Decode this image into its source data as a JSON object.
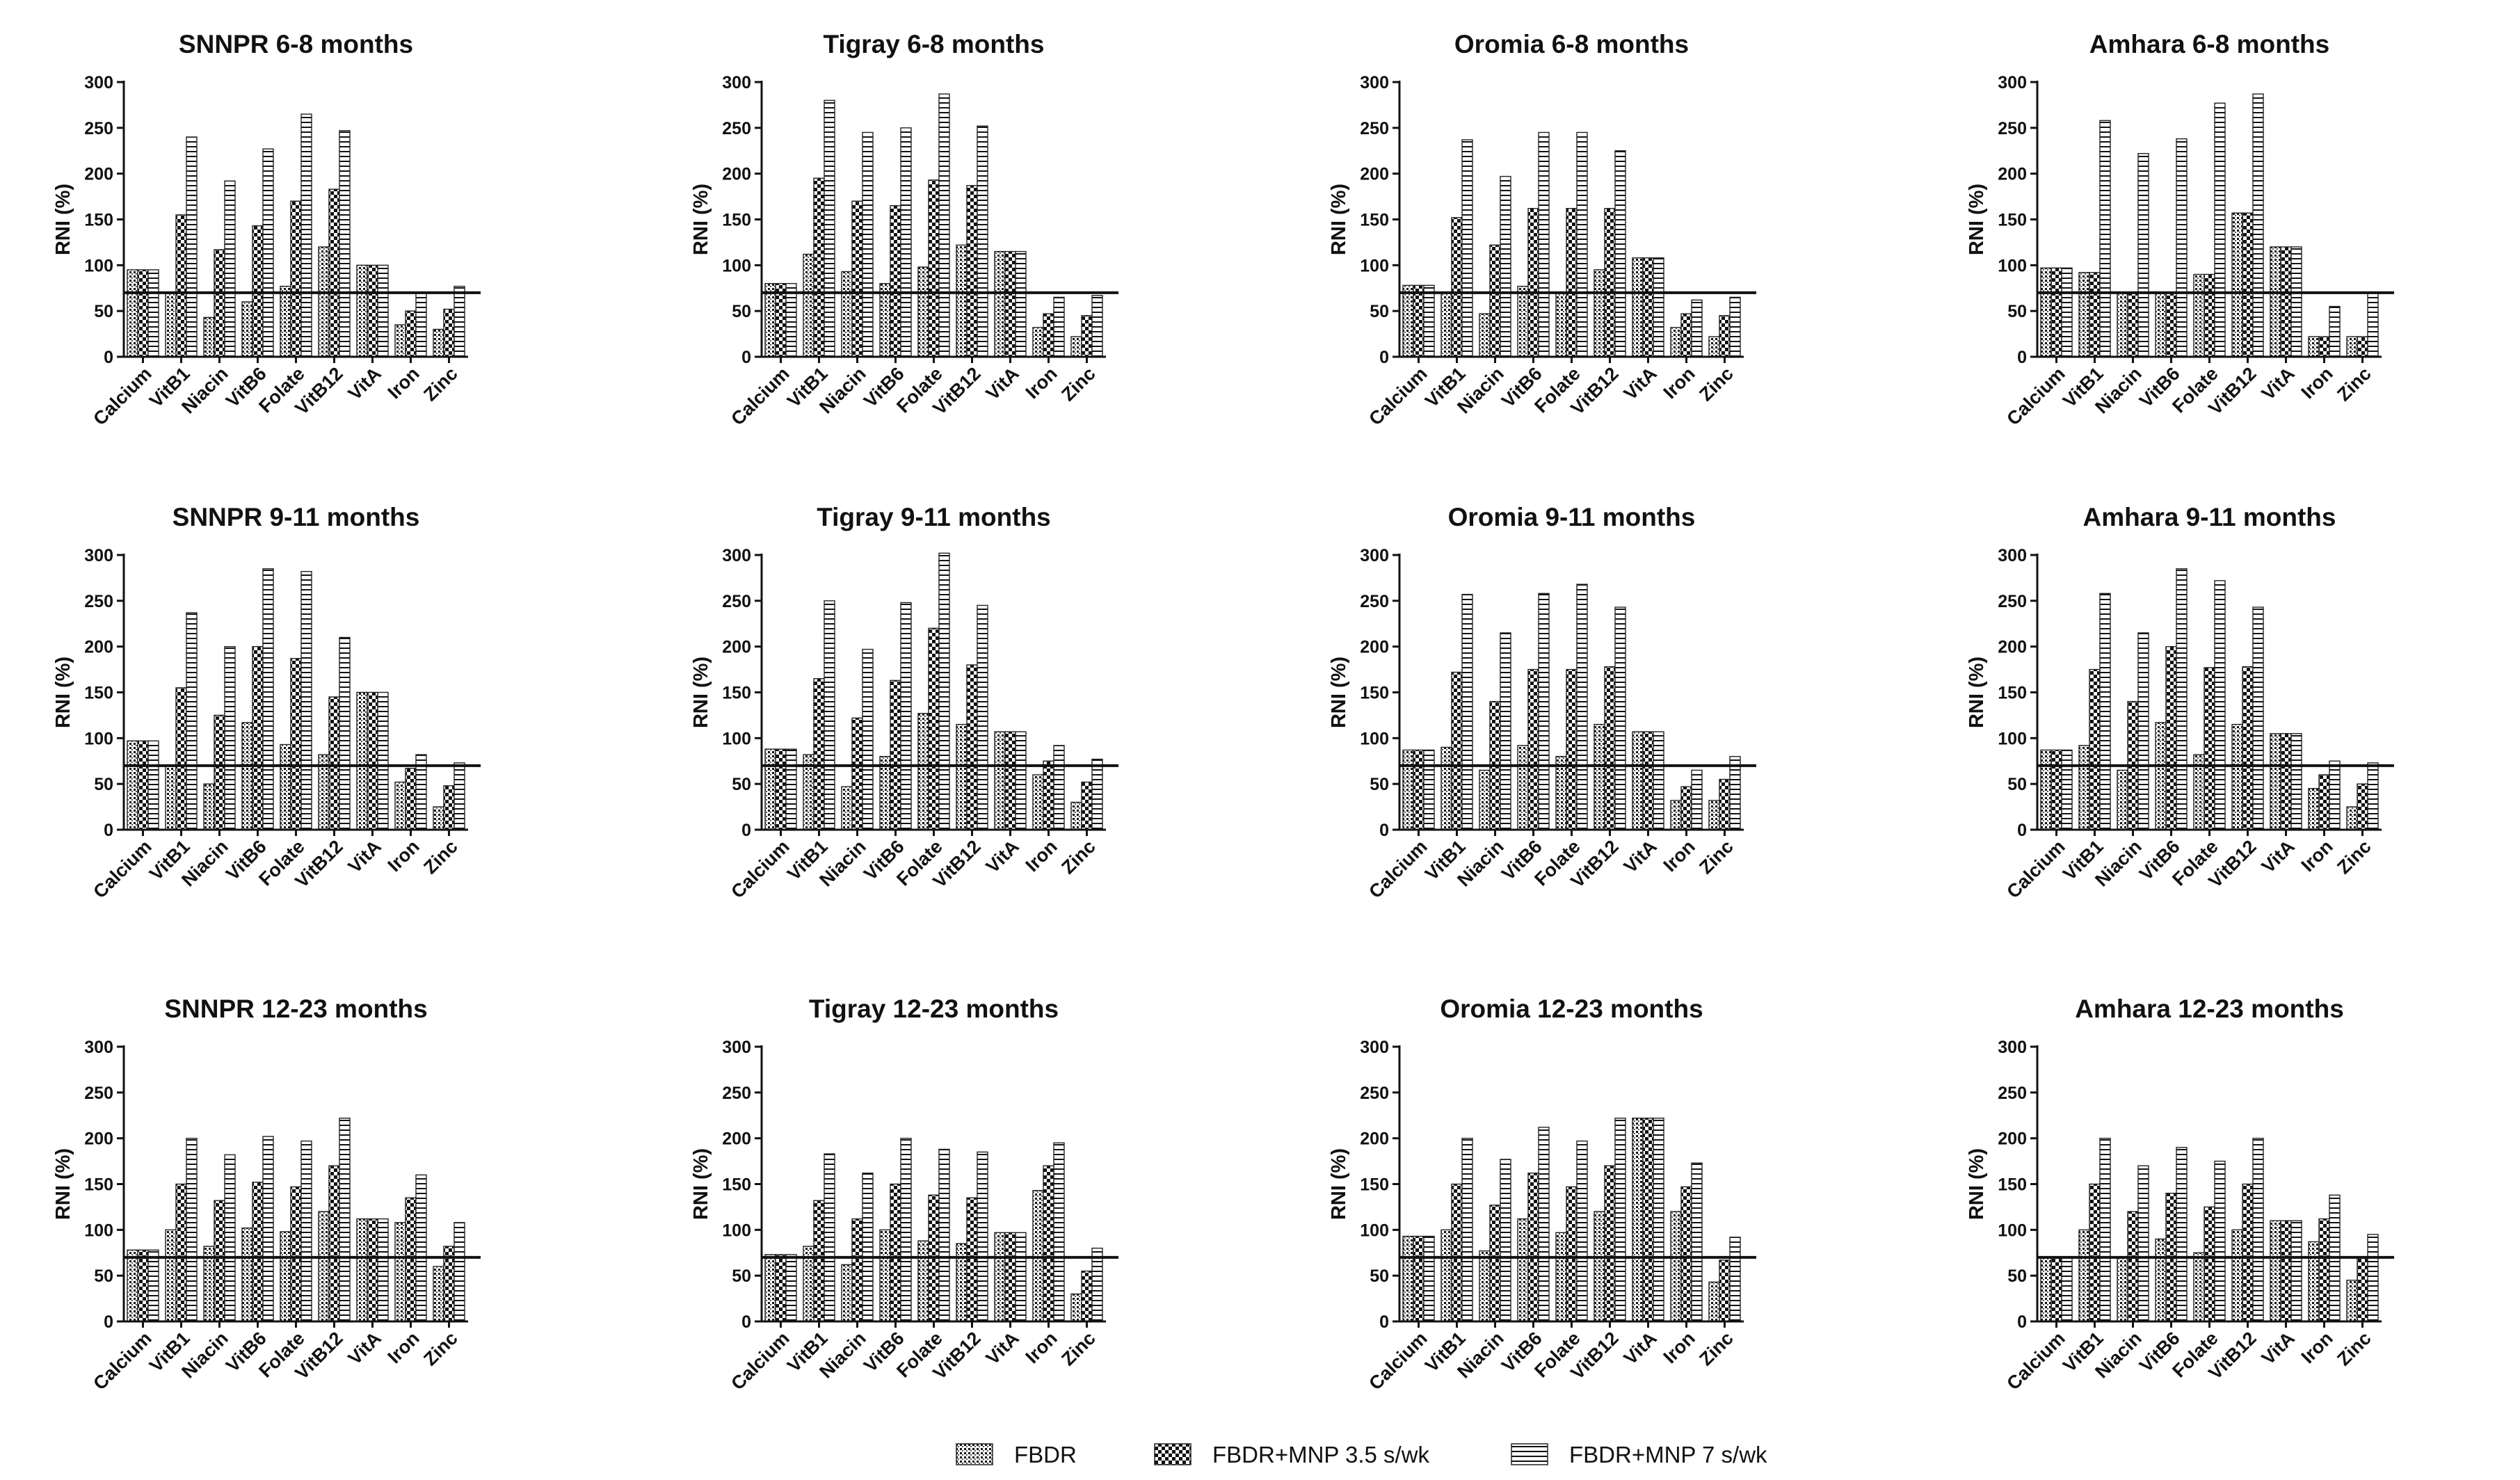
{
  "chart_data": {
    "type": "bar",
    "ylabel": "RNI (%)",
    "ylim": [
      0,
      300
    ],
    "yticks": [
      0,
      50,
      100,
      150,
      200,
      250,
      300
    ],
    "reference_line": 70,
    "categories": [
      "Calcium",
      "VitB1",
      "Niacin",
      "VitB6",
      "Folate",
      "VitB12",
      "VitA",
      "Iron",
      "Zinc"
    ],
    "series_names": [
      "FBDR",
      "FBDR+MNP 3.5 s/wk",
      "FBDR+MNP 7 s/wk"
    ],
    "panels": [
      {
        "title": "SNNPR 6-8 months",
        "series": [
          [
            95,
            70,
            43,
            60,
            77,
            120,
            100,
            35,
            30
          ],
          [
            95,
            155,
            117,
            143,
            170,
            183,
            100,
            50,
            52
          ],
          [
            95,
            240,
            192,
            227,
            265,
            247,
            100,
            70,
            77
          ]
        ]
      },
      {
        "title": "Tigray 6-8 months",
        "series": [
          [
            80,
            112,
            93,
            80,
            98,
            122,
            115,
            32,
            22
          ],
          [
            80,
            195,
            170,
            165,
            193,
            187,
            115,
            47,
            45
          ],
          [
            80,
            280,
            245,
            250,
            287,
            252,
            115,
            65,
            67
          ]
        ]
      },
      {
        "title": "Oromia 6-8 months",
        "series": [
          [
            78,
            70,
            47,
            77,
            70,
            95,
            108,
            32,
            22
          ],
          [
            78,
            152,
            122,
            162,
            162,
            162,
            108,
            47,
            45
          ],
          [
            78,
            237,
            197,
            245,
            245,
            225,
            108,
            62,
            65
          ]
        ]
      },
      {
        "title": "Amhara 6-8 months",
        "series": [
          [
            97,
            92,
            70,
            70,
            90,
            157,
            120,
            22,
            22
          ],
          [
            97,
            92,
            70,
            70,
            90,
            157,
            120,
            22,
            22
          ],
          [
            97,
            258,
            222,
            238,
            277,
            287,
            120,
            55,
            70
          ]
        ]
      },
      {
        "title": "SNNPR 9-11 months",
        "series": [
          [
            97,
            70,
            50,
            117,
            93,
            82,
            150,
            52,
            25
          ],
          [
            97,
            155,
            125,
            200,
            187,
            145,
            150,
            67,
            48
          ],
          [
            97,
            237,
            200,
            285,
            282,
            210,
            150,
            82,
            73
          ]
        ]
      },
      {
        "title": "Tigray 9-11 months",
        "series": [
          [
            88,
            82,
            47,
            80,
            127,
            115,
            107,
            60,
            30
          ],
          [
            88,
            165,
            122,
            163,
            220,
            180,
            107,
            75,
            52
          ],
          [
            88,
            250,
            197,
            248,
            302,
            245,
            107,
            92,
            77
          ]
        ]
      },
      {
        "title": "Oromia 9-11 months",
        "series": [
          [
            87,
            90,
            65,
            92,
            80,
            115,
            107,
            32,
            32
          ],
          [
            87,
            172,
            140,
            175,
            175,
            178,
            107,
            47,
            55
          ],
          [
            87,
            257,
            215,
            258,
            268,
            243,
            107,
            65,
            80
          ]
        ]
      },
      {
        "title": "Amhara 9-11 months",
        "series": [
          [
            87,
            92,
            65,
            117,
            82,
            115,
            105,
            45,
            25
          ],
          [
            87,
            175,
            140,
            200,
            177,
            178,
            105,
            60,
            50
          ],
          [
            87,
            258,
            215,
            285,
            272,
            243,
            105,
            75,
            73
          ]
        ]
      },
      {
        "title": "SNNPR 12-23 months",
        "series": [
          [
            78,
            100,
            82,
            102,
            98,
            120,
            112,
            108,
            60
          ],
          [
            78,
            150,
            132,
            152,
            147,
            170,
            112,
            135,
            82
          ],
          [
            78,
            200,
            182,
            202,
            197,
            222,
            112,
            160,
            108
          ]
        ]
      },
      {
        "title": "Tigray 12-23 months",
        "series": [
          [
            73,
            82,
            62,
            100,
            88,
            85,
            97,
            143,
            30
          ],
          [
            73,
            132,
            112,
            150,
            138,
            135,
            97,
            170,
            55
          ],
          [
            73,
            183,
            162,
            200,
            188,
            185,
            97,
            195,
            80
          ]
        ]
      },
      {
        "title": "Oromia 12-23 months",
        "series": [
          [
            93,
            100,
            77,
            112,
            97,
            120,
            222,
            120,
            43
          ],
          [
            93,
            150,
            127,
            162,
            147,
            170,
            222,
            147,
            67
          ],
          [
            93,
            200,
            177,
            212,
            197,
            222,
            222,
            173,
            92
          ]
        ]
      },
      {
        "title": "Amhara 12-23 months",
        "series": [
          [
            70,
            100,
            70,
            90,
            75,
            100,
            110,
            87,
            45
          ],
          [
            70,
            150,
            120,
            140,
            125,
            150,
            110,
            112,
            70
          ],
          [
            70,
            200,
            170,
            190,
            175,
            200,
            110,
            138,
            95
          ]
        ]
      }
    ]
  },
  "legend": {
    "items": [
      {
        "label": "FBDR",
        "pattern": "dots"
      },
      {
        "label": "FBDR+MNP 3.5 s/wk",
        "pattern": "check"
      },
      {
        "label": "FBDR+MNP 7 s/wk",
        "pattern": "lines"
      }
    ]
  },
  "colors": {
    "ink": "#111111",
    "fill": "#ffffff"
  }
}
